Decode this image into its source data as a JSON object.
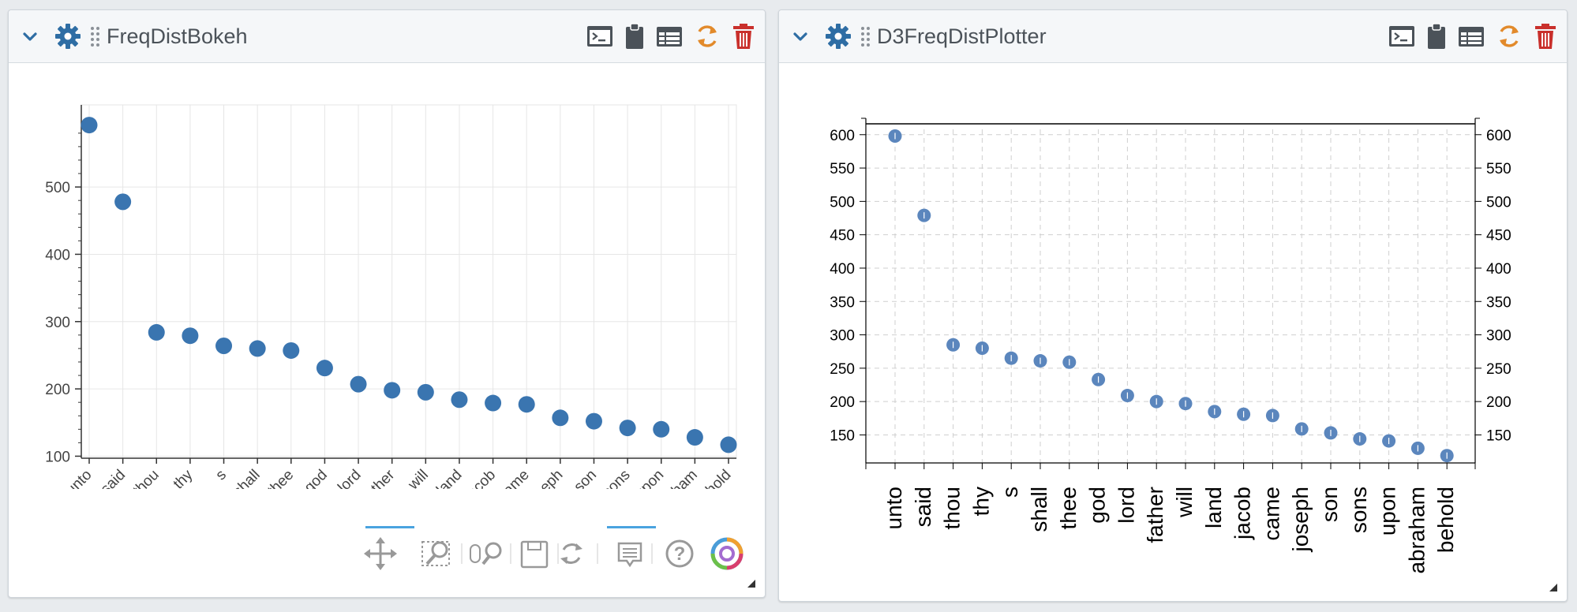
{
  "panels": {
    "left": {
      "title": "FreqDistBokeh",
      "icons": {
        "collapse": "chevron-down-icon",
        "settings": "gear-icon",
        "drag": "drag-handle-icon",
        "terminal": "terminal-icon",
        "clipboard": "clipboard-icon",
        "table": "table-icon",
        "refresh": "refresh-icon",
        "delete": "trash-icon"
      },
      "toolbar": [
        "pan-tool-icon",
        "box-zoom-tool-icon",
        "wheel-zoom-tool-icon",
        "save-tool-icon",
        "reset-tool-icon",
        "hover-tool-icon",
        "help-icon",
        "bokeh-logo-icon"
      ]
    },
    "right": {
      "title": "D3FreqDistPlotter",
      "icons": {
        "collapse": "chevron-down-icon",
        "settings": "gear-icon",
        "drag": "drag-handle-icon",
        "terminal": "terminal-icon",
        "clipboard": "clipboard-icon",
        "table": "table-icon",
        "refresh": "refresh-icon",
        "delete": "trash-icon"
      }
    }
  },
  "colors": {
    "accent": "#2e6da4",
    "marker": "#3a75b0",
    "marker_d3": "#5b86bd",
    "refresh": "#e28a2b",
    "delete": "#c9302c",
    "toolbar_active": "#4aa3df"
  },
  "chart_data": [
    {
      "type": "scatter",
      "title": "",
      "xlabel": "",
      "ylabel": "",
      "categories": [
        "unto",
        "said",
        "thou",
        "thy",
        "s",
        "shall",
        "thee",
        "god",
        "lord",
        "father",
        "will",
        "land",
        "jacob",
        "came",
        "joseph",
        "son",
        "sons",
        "upon",
        "abraham",
        "behold"
      ],
      "values": [
        592,
        478,
        284,
        279,
        264,
        260,
        257,
        231,
        207,
        198,
        195,
        184,
        179,
        177,
        157,
        152,
        142,
        140,
        128,
        117
      ],
      "yticks": [
        100,
        200,
        300,
        400,
        500
      ],
      "ylim": [
        97,
        622
      ],
      "grid": true
    },
    {
      "type": "scatter",
      "title": "",
      "xlabel": "",
      "ylabel": "",
      "categories": [
        "unto",
        "said",
        "thou",
        "thy",
        "s",
        "shall",
        "thee",
        "god",
        "lord",
        "father",
        "will",
        "land",
        "jacob",
        "came",
        "joseph",
        "son",
        "sons",
        "upon",
        "abraham",
        "behold"
      ],
      "values": [
        598,
        479,
        285,
        280,
        265,
        261,
        259,
        233,
        209,
        200,
        197,
        185,
        181,
        179,
        159,
        153,
        144,
        141,
        130,
        119
      ],
      "yticks": [
        150,
        200,
        250,
        300,
        350,
        400,
        450,
        500,
        550,
        600
      ],
      "ylim": [
        108,
        608
      ],
      "grid": true
    }
  ]
}
